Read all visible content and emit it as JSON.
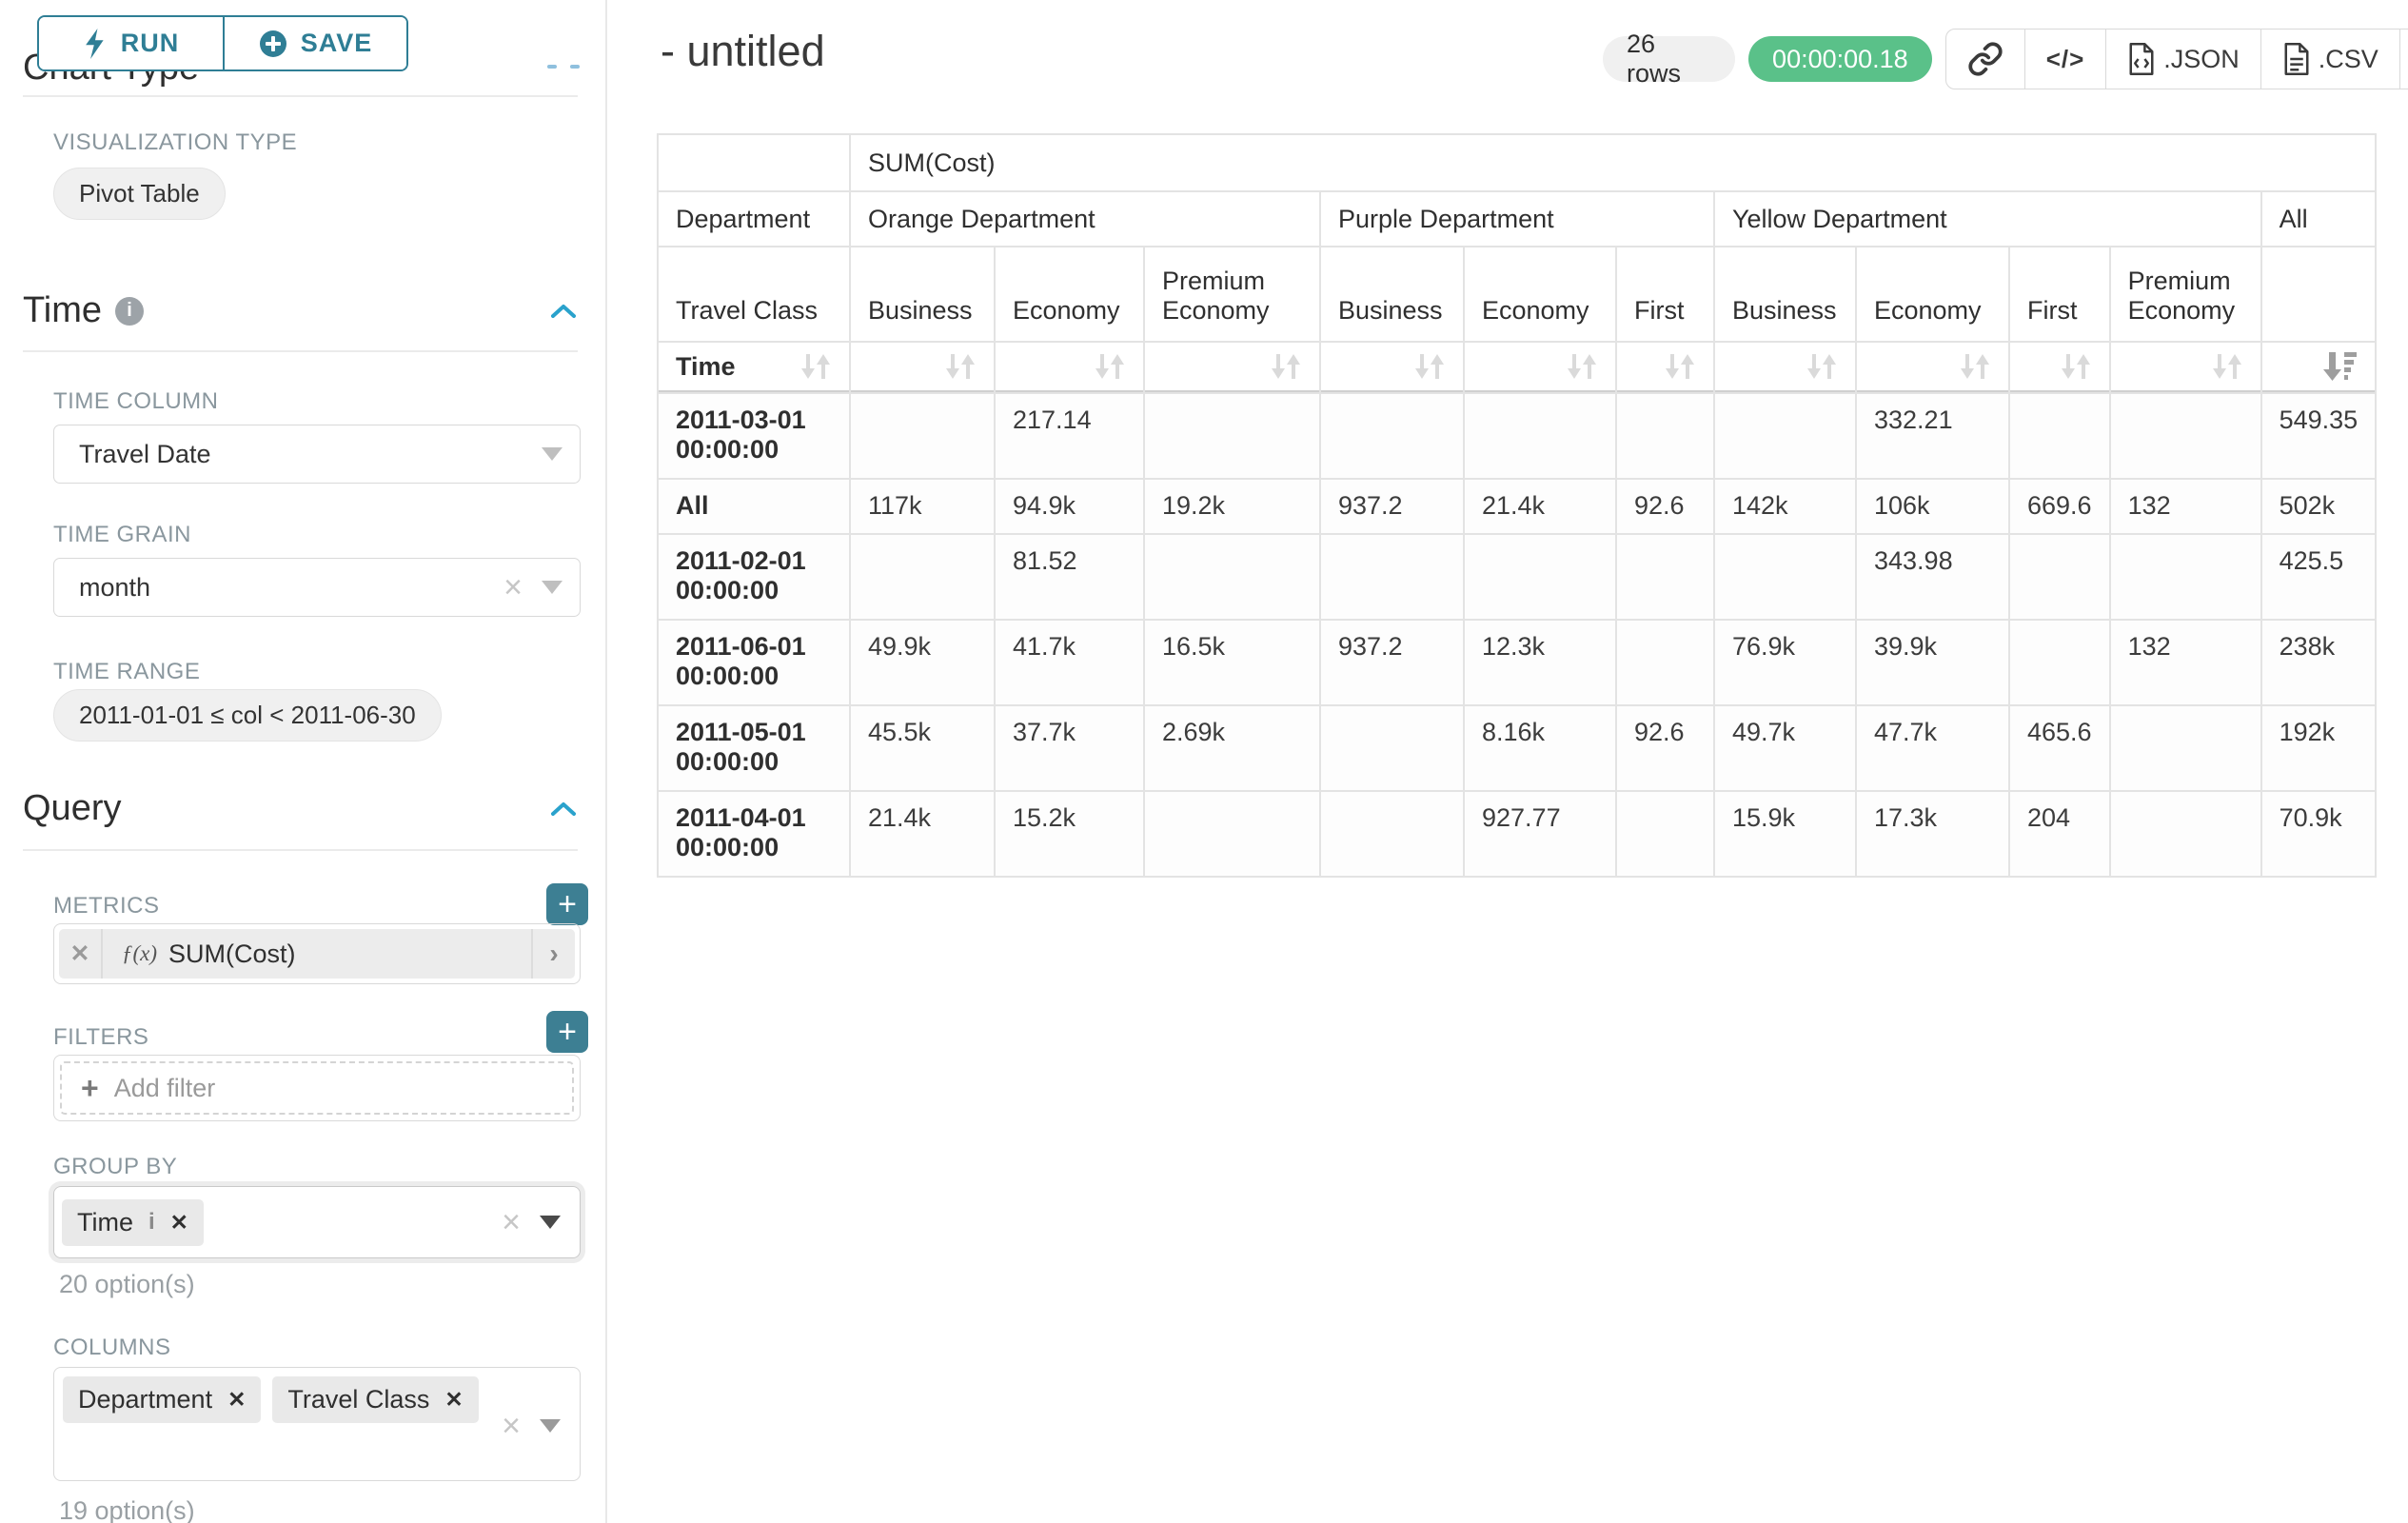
{
  "sidebar": {
    "run_label": "RUN",
    "save_label": "SAVE",
    "chart_type_title": "Chart Type",
    "viz_label": "VISUALIZATION TYPE",
    "viz_value": "Pivot Table",
    "time_title": "Time",
    "time_column_label": "TIME COLUMN",
    "time_column_value": "Travel Date",
    "time_grain_label": "TIME GRAIN",
    "time_grain_value": "month",
    "time_range_label": "TIME RANGE",
    "time_range_value": "2011-01-01 ≤ col < 2011-06-30",
    "query_title": "Query",
    "metrics_label": "METRICS",
    "metric_fx": "ƒ(x)",
    "metric_value": "SUM(Cost)",
    "filters_label": "FILTERS",
    "add_filter_label": "Add filter",
    "group_by_label": "GROUP BY",
    "group_by_tags": [
      "Time"
    ],
    "group_by_hint": "20 option(s)",
    "columns_label": "COLUMNS",
    "columns_tags": [
      "Department",
      "Travel Class"
    ],
    "columns_hint": "19 option(s)"
  },
  "header": {
    "title": "- untitled",
    "rows_badge": "26 rows",
    "timer": "00:00:00.18",
    "json_label": ".JSON",
    "csv_label": ".CSV"
  },
  "colors": {
    "accent": "#2f7e95",
    "success": "#5ac189"
  },
  "pivot": {
    "metric_header": "SUM(Cost)",
    "corner_department": "Department",
    "corner_travel_class": "Travel Class",
    "corner_time": "Time",
    "col_groups": [
      {
        "label": "Orange Department",
        "cols": [
          "Business",
          "Economy",
          "Premium Economy"
        ]
      },
      {
        "label": "Purple Department",
        "cols": [
          "Business",
          "Economy",
          "First"
        ]
      },
      {
        "label": "Yellow Department",
        "cols": [
          "Business",
          "Economy",
          "First",
          "Premium Economy"
        ]
      },
      {
        "label": "All",
        "cols": [
          ""
        ]
      }
    ],
    "sort_active_col": 10,
    "rows": [
      {
        "label": "2011-03-01 00:00:00",
        "values": [
          "",
          "217.14",
          "",
          "",
          "",
          "",
          "",
          "332.21",
          "",
          "",
          "549.35"
        ]
      },
      {
        "label": "All",
        "values": [
          "117k",
          "94.9k",
          "19.2k",
          "937.2",
          "21.4k",
          "92.6",
          "142k",
          "106k",
          "669.6",
          "132",
          "502k"
        ]
      },
      {
        "label": "2011-02-01 00:00:00",
        "values": [
          "",
          "81.52",
          "",
          "",
          "",
          "",
          "",
          "343.98",
          "",
          "",
          "425.5"
        ]
      },
      {
        "label": "2011-06-01 00:00:00",
        "values": [
          "49.9k",
          "41.7k",
          "16.5k",
          "937.2",
          "12.3k",
          "",
          "76.9k",
          "39.9k",
          "",
          "132",
          "238k"
        ]
      },
      {
        "label": "2011-05-01 00:00:00",
        "values": [
          "45.5k",
          "37.7k",
          "2.69k",
          "",
          "8.16k",
          "92.6",
          "49.7k",
          "47.7k",
          "465.6",
          "",
          "192k"
        ]
      },
      {
        "label": "2011-04-01 00:00:00",
        "values": [
          "21.4k",
          "15.2k",
          "",
          "",
          "927.77",
          "",
          "15.9k",
          "17.3k",
          "204",
          "",
          "70.9k"
        ]
      }
    ]
  }
}
